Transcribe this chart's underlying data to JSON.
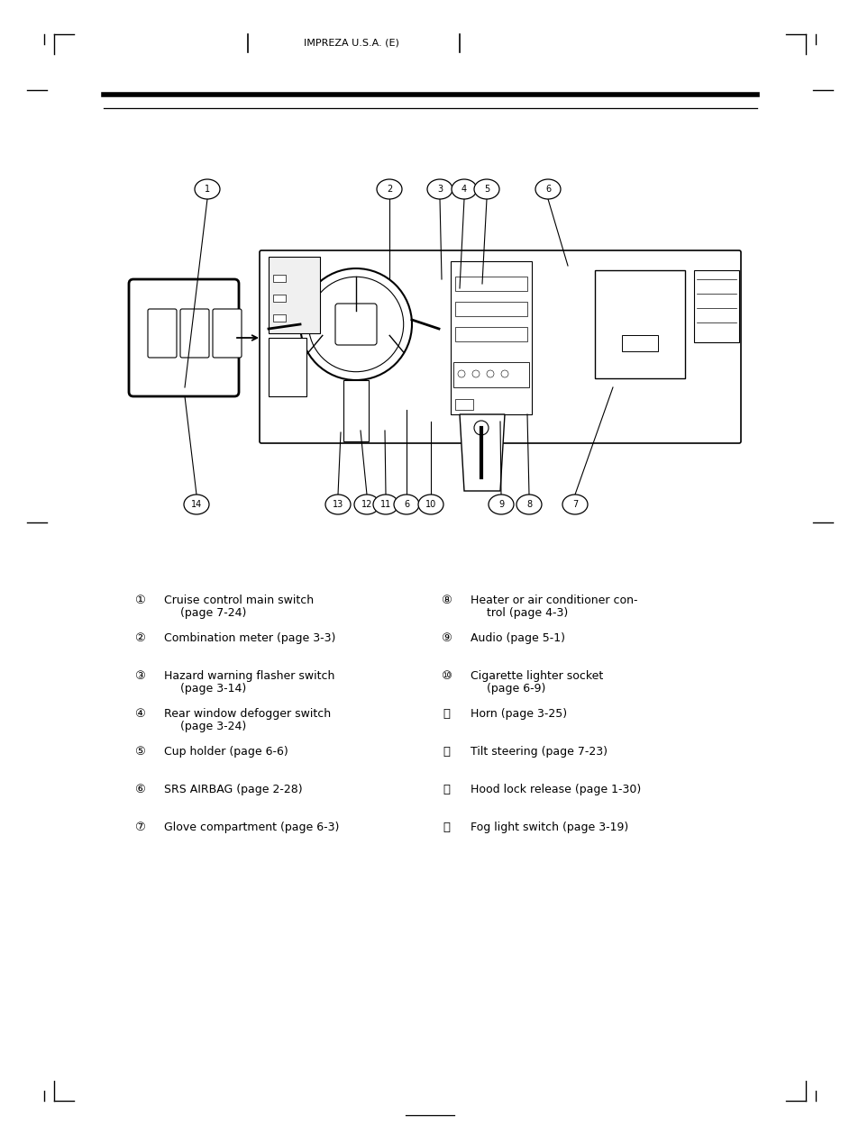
{
  "header_text": "IMPREZA U.S.A. (E)",
  "bg_color": "#ffffff",
  "text_color": "#000000",
  "page_width": 9.54,
  "page_height": 12.6,
  "legend_items_left": [
    [
      "①",
      "Cruise control main switch",
      "(page 7-24)"
    ],
    [
      "②",
      "Combination meter (page 3-3)",
      ""
    ],
    [
      "③",
      "Hazard warning flasher switch",
      "(page 3-14)"
    ],
    [
      "④",
      "Rear window defogger switch",
      "(page 3-24)"
    ],
    [
      "⑤",
      "Cup holder (page 6-6)",
      ""
    ],
    [
      "⑥",
      "SRS AIRBAG (page 2-28)",
      ""
    ],
    [
      "⑦",
      "Glove compartment (page 6-3)",
      ""
    ]
  ],
  "legend_items_right": [
    [
      "⑧",
      "Heater or air conditioner con-",
      "trol (page 4-3)"
    ],
    [
      "⑨",
      "Audio (page 5-1)",
      ""
    ],
    [
      "⑩",
      "Cigarette lighter socket",
      "(page 6-9)"
    ],
    [
      "⑪",
      "Horn (page 3-25)",
      ""
    ],
    [
      "⑫",
      "Tilt steering (page 7-23)",
      ""
    ],
    [
      "⑬",
      "Hood lock release (page 1-30)",
      ""
    ],
    [
      "⑭",
      "Fog light switch (page 3-19)",
      ""
    ]
  ]
}
